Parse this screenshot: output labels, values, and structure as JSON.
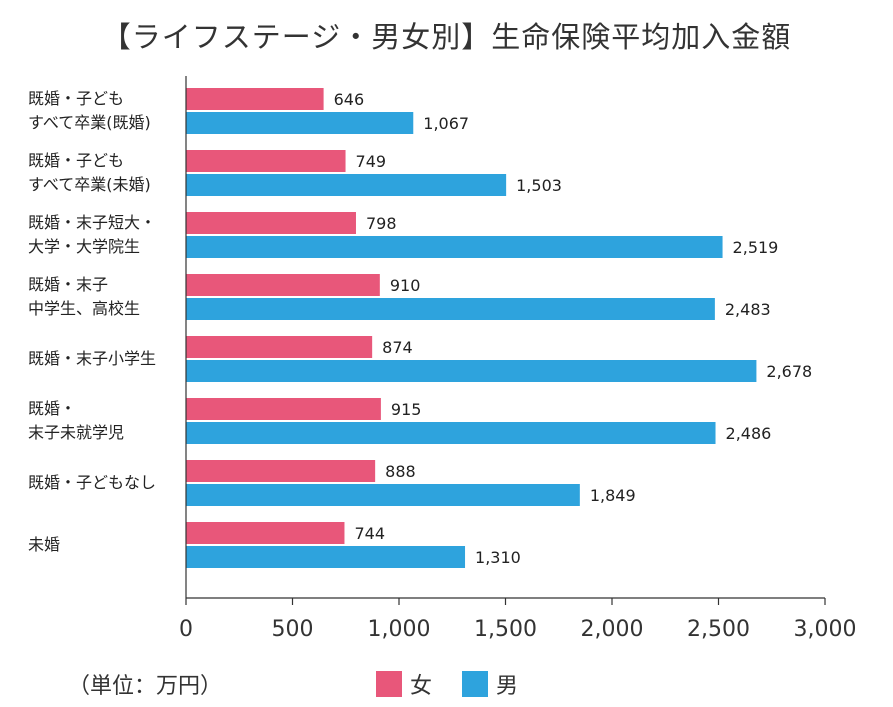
{
  "chart_data": {
    "type": "bar",
    "orientation": "horizontal",
    "title": "【ライフステージ・男女別】生命保険平均加入金額",
    "categories": [
      "既婚・子ども\nすべて卒業(既婚)",
      "既婚・子ども\nすべて卒業(未婚)",
      "既婚・末子短大・\n大学・大学院生",
      "既婚・末子\n中学生、高校生",
      "既婚・末子小学生",
      "既婚・\n末子未就学児",
      "既婚・子どもなし",
      "未婚"
    ],
    "series": [
      {
        "name": "女",
        "color": "#e8577a",
        "values": [
          646,
          749,
          798,
          910,
          874,
          915,
          888,
          744
        ],
        "labels": [
          "646",
          "749",
          "798",
          "910",
          "874",
          "915",
          "888",
          "744"
        ]
      },
      {
        "name": "男",
        "color": "#2ea3dd",
        "values": [
          1067,
          1503,
          2519,
          2483,
          2678,
          2486,
          1849,
          1310
        ],
        "labels": [
          "1,067",
          "1,503",
          "2,519",
          "2,483",
          "2,678",
          "2,486",
          "1,849",
          "1,310"
        ]
      }
    ],
    "xlim": [
      0,
      3000
    ],
    "xticks": [
      0,
      500,
      1000,
      1500,
      2000,
      2500,
      3000
    ],
    "xtick_labels": [
      "0",
      "500",
      "1,000",
      "1,500",
      "2,000",
      "2,500",
      "3,000"
    ],
    "unit_label": "（単位：万円）",
    "legend_position": "bottom",
    "grid": false
  }
}
